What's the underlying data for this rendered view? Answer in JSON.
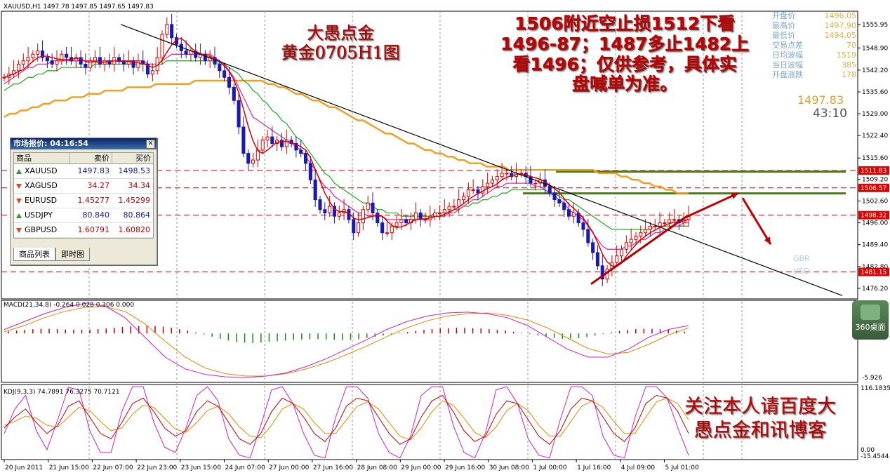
{
  "window": {
    "symbol_header": "XAUUSD,H1  1497.78  1497.85  1497.65  1497.83"
  },
  "annotations": {
    "title_line1": "大愚点金",
    "title_line2": "黄金0705H1图",
    "strategy_line1": "1506附近空止损1512下看",
    "strategy_line2": "1496-87；1487多止1482上",
    "strategy_line3": "看1496；仅供参考，具体实",
    "strategy_line4": "盘喊单为准。",
    "follow_line1": "关注本人请百度大",
    "follow_line2": "愚点金和讯博客"
  },
  "info_panel": [
    {
      "label": "开盘价",
      "value": "1496.05"
    },
    {
      "label": "最高价",
      "value": "1497.90"
    },
    {
      "label": "最低价",
      "value": "1494.05"
    },
    {
      "label": "交易点差",
      "value": "70"
    },
    {
      "label": "日均波幅",
      "value": "1519"
    },
    {
      "label": "当日波幅",
      "value": "385"
    },
    {
      "label": "开盘涨跌",
      "value": "178"
    }
  ],
  "big_price": "1497.83",
  "countdown": "43:10",
  "widget_label": "360桌面",
  "faint_labels": {
    "gbr": "GBR",
    "usd": "USD"
  },
  "market_watch": {
    "title": "市场报价: 04:16:54",
    "col_symbol": "商品",
    "col_bid": "卖价",
    "col_ask": "买价",
    "rows": [
      {
        "symbol": "XAUUSD",
        "bid": "1497.83",
        "ask": "1498.53",
        "dir": "up",
        "color": "#1a1aa0"
      },
      {
        "symbol": "XAGUSD",
        "bid": "34.27",
        "ask": "34.34",
        "dir": "down",
        "color": "#c00000"
      },
      {
        "symbol": "EURUSD",
        "bid": "1.45277",
        "ask": "1.45299",
        "dir": "down",
        "color": "#c00000"
      },
      {
        "symbol": "USDJPY",
        "bid": "80.840",
        "ask": "80.864",
        "dir": "up",
        "color": "#1a1aa0"
      },
      {
        "symbol": "GBPUSD",
        "bid": "1.60791",
        "ask": "1.60820",
        "dir": "down",
        "color": "#c00000"
      }
    ],
    "tab_list": "商品列表",
    "tab_tick": "即时图"
  },
  "chart_data": [
    {
      "type": "line",
      "panel": "price",
      "ylim": [
        1473,
        1560
      ],
      "yticks": [
        "1555.95",
        "1548.90",
        "1542.20",
        "1535.60",
        "1529.00",
        "1522.40",
        "1515.60",
        "1509.20",
        "1502.60",
        "1496.00",
        "1489.40",
        "1482.80",
        "1476.20"
      ],
      "yticks_num": [
        1555.95,
        1548.9,
        1542.2,
        1535.6,
        1529.0,
        1522.4,
        1515.6,
        1509.2,
        1502.6,
        1496.0,
        1489.4,
        1482.8,
        1476.2
      ],
      "price_labels": [
        {
          "text": "1511.83",
          "value": 1511.83
        },
        {
          "text": "1506.57",
          "value": 1506.57
        },
        {
          "text": "1498.32",
          "value": 1498.32
        },
        {
          "text": "1481.15",
          "value": 1481.15
        }
      ],
      "green_levels": [
        1511.5,
        1504.9
      ],
      "close_series": [
        1540,
        1541,
        1542,
        1544,
        1545,
        1546,
        1547,
        1548,
        1546,
        1545,
        1544,
        1545,
        1547,
        1546,
        1545,
        1546,
        1544,
        1543,
        1545,
        1546,
        1544,
        1545,
        1544,
        1546,
        1545,
        1544,
        1545,
        1543,
        1545,
        1544,
        1541,
        1542,
        1546,
        1553,
        1556,
        1552,
        1550,
        1548,
        1547,
        1548,
        1546,
        1547,
        1545,
        1546,
        1544,
        1542,
        1540,
        1537,
        1533,
        1525,
        1517,
        1514,
        1515,
        1518,
        1521,
        1522,
        1520,
        1521,
        1519,
        1521,
        1520,
        1518,
        1517,
        1514,
        1509,
        1503,
        1500,
        1499,
        1501,
        1498,
        1499,
        1500,
        1497,
        1493,
        1496,
        1500,
        1502,
        1499,
        1496,
        1493,
        1493,
        1495,
        1496,
        1497,
        1496,
        1497,
        1499,
        1497,
        1497,
        1498,
        1499,
        1499,
        1500,
        1501,
        1501,
        1503,
        1504,
        1506,
        1506,
        1505,
        1507,
        1508,
        1509,
        1510,
        1511,
        1511,
        1510,
        1511,
        1511,
        1510,
        1508,
        1508,
        1509,
        1507,
        1505,
        1503,
        1502,
        1500,
        1498,
        1499,
        1496,
        1494,
        1490,
        1487,
        1483,
        1479,
        1482,
        1484,
        1486,
        1488,
        1490,
        1491,
        1492,
        1493,
        1494,
        1495,
        1495,
        1496,
        1496,
        1497,
        1497,
        1496,
        1497,
        1498
      ],
      "ma_pink": [
        1538,
        1539,
        1540,
        1541,
        1542,
        1543,
        1543,
        1544,
        1544,
        1544,
        1545,
        1545,
        1545,
        1545,
        1545,
        1545,
        1545,
        1545,
        1545,
        1545,
        1545,
        1545,
        1545,
        1545,
        1545,
        1545,
        1545,
        1545,
        1545,
        1545,
        1544,
        1544,
        1544,
        1545,
        1546,
        1547,
        1547,
        1547,
        1547,
        1547,
        1547,
        1547,
        1547,
        1547,
        1546,
        1545,
        1544,
        1542,
        1540,
        1537,
        1534,
        1531,
        1528,
        1527,
        1526,
        1525,
        1524,
        1523,
        1522,
        1521,
        1520,
        1519,
        1518,
        1516,
        1514,
        1512,
        1509,
        1507,
        1506,
        1504,
        1503,
        1502,
        1501,
        1500,
        1499,
        1499,
        1498,
        1498,
        1498,
        1498,
        1497,
        1497,
        1497,
        1497,
        1497,
        1497,
        1497,
        1497,
        1497,
        1497,
        1498,
        1498,
        1498,
        1499,
        1499,
        1500,
        1501,
        1502,
        1503,
        1503,
        1504,
        1505,
        1506,
        1507,
        1507,
        1508,
        1508,
        1508,
        1508,
        1508,
        1508,
        1507,
        1507,
        1506,
        1505,
        1504,
        1503,
        1502,
        1500,
        1499,
        1498,
        1497,
        1495,
        1493,
        1491,
        1489,
        1488,
        1488,
        1488,
        1488,
        1489,
        1489,
        1490,
        1491,
        1491,
        1492,
        1493,
        1493,
        1494,
        1494,
        1495,
        1495,
        1496,
        1496
      ],
      "ma_green": [
        1536,
        1537,
        1538,
        1538,
        1539,
        1540,
        1540,
        1541,
        1541,
        1542,
        1542,
        1542,
        1543,
        1543,
        1543,
        1543,
        1543,
        1543,
        1543,
        1544,
        1544,
        1544,
        1544,
        1544,
        1544,
        1544,
        1544,
        1544,
        1544,
        1544,
        1544,
        1544,
        1544,
        1544,
        1545,
        1545,
        1545,
        1545,
        1545,
        1545,
        1545,
        1545,
        1545,
        1545,
        1545,
        1544,
        1544,
        1543,
        1542,
        1541,
        1539,
        1538,
        1536,
        1535,
        1533,
        1532,
        1530,
        1529,
        1527,
        1526,
        1524,
        1522,
        1521,
        1519,
        1517,
        1515,
        1513,
        1511,
        1510,
        1508,
        1507,
        1506,
        1505,
        1504,
        1503,
        1502,
        1502,
        1501,
        1500,
        1500,
        1499,
        1499,
        1499,
        1498,
        1498,
        1498,
        1498,
        1498,
        1498,
        1498,
        1499,
        1499,
        1499,
        1499,
        1500,
        1500,
        1501,
        1501,
        1502,
        1502,
        1503,
        1503,
        1504,
        1504,
        1505,
        1505,
        1506,
        1506,
        1506,
        1506,
        1506,
        1506,
        1506,
        1506,
        1505,
        1505,
        1504,
        1503,
        1503,
        1502,
        1501,
        1500,
        1499,
        1498,
        1497,
        1496,
        1495,
        1494,
        1494,
        1494,
        1494,
        1494,
        1494,
        1494,
        1494,
        1494,
        1495,
        1495,
        1495,
        1495,
        1495,
        1495,
        1495,
        1495
      ],
      "ma_orange": [
        1528,
        1529,
        1529,
        1530,
        1530,
        1531,
        1531,
        1532,
        1532,
        1533,
        1533,
        1533,
        1534,
        1534,
        1534,
        1535,
        1535,
        1535,
        1536,
        1536,
        1536,
        1536,
        1537,
        1537,
        1537,
        1537,
        1537,
        1538,
        1538,
        1538,
        1538,
        1538,
        1538,
        1538,
        1539,
        1539,
        1539,
        1539,
        1539,
        1539,
        1539,
        1539,
        1539,
        1539,
        1539,
        1539,
        1539,
        1538,
        1538,
        1537,
        1537,
        1536,
        1535,
        1535,
        1534,
        1533,
        1533,
        1532,
        1531,
        1531,
        1530,
        1529,
        1528,
        1527,
        1527,
        1526,
        1525,
        1524,
        1523,
        1523,
        1522,
        1521,
        1520,
        1520,
        1519,
        1518,
        1518,
        1517,
        1517,
        1516,
        1516,
        1515,
        1515,
        1514,
        1514,
        1514,
        1513,
        1513,
        1513,
        1513,
        1512,
        1512,
        1512,
        1512,
        1512,
        1512,
        1512,
        1512,
        1512,
        1512,
        1512,
        1512,
        1512,
        1512,
        1512,
        1512,
        1511,
        1511,
        1511,
        1511,
        1510,
        1510,
        1509,
        1509,
        1508,
        1508,
        1507,
        1507,
        1506,
        1506,
        1505,
        1505,
        1505
      ],
      "trendline_black": [
        [
          1556,
          1474
        ]
      ],
      "trendline_red": [
        1477,
        1498
      ]
    },
    {
      "type": "bar",
      "panel": "macd",
      "legend": "MACD(21,34,8) -0.264 0.028 0.306 0.000",
      "yticks": [
        "-5.926"
      ],
      "hist": [
        0.6,
        0.8,
        1.0,
        1.2,
        1.3,
        1.3,
        1.2,
        1.1,
        1.0,
        1.0,
        1.1,
        1.2,
        1.4,
        1.6,
        1.8,
        2.0,
        2.1,
        2.2,
        2.1,
        1.9,
        1.6,
        1.2,
        0.8,
        0.3,
        -0.3,
        -0.9,
        -1.5,
        -2.0,
        -2.4,
        -2.6,
        -2.7,
        -2.6,
        -2.4,
        -2.2,
        -2.0,
        -1.8,
        -1.7,
        -1.6,
        -1.6,
        -1.7,
        -1.8,
        -1.9,
        -1.8,
        -1.6,
        -1.3,
        -1.0,
        -0.6,
        -0.3,
        0.1,
        0.4,
        0.7,
        1.0,
        1.2,
        1.4,
        1.5,
        1.6,
        1.6,
        1.5,
        1.4,
        1.2,
        1.0,
        0.8,
        0.5,
        0.2,
        -0.2,
        -0.6,
        -1.0,
        -1.3,
        -1.5,
        -1.5,
        -1.3,
        -1.0,
        -0.6,
        -0.2,
        0.3,
        0.7,
        1.0,
        1.2,
        1.3,
        1.3,
        1.2,
        1.0,
        0.8,
        0.5
      ],
      "macd_line": [
        0.5,
        1.5,
        2.5,
        3.3,
        3.8,
        3.5,
        2.0,
        -0.5,
        -3.0,
        -4.5,
        -5.2,
        -5.5,
        -5.6,
        -5.4,
        -5.0,
        -4.2,
        -3.2,
        -2.0,
        -0.8,
        0.5,
        1.5,
        2.2,
        2.6,
        2.7,
        2.5,
        2.0,
        1.0,
        -0.5,
        -2.0,
        -3.0,
        -3.0,
        -2.0,
        -0.5,
        0.5,
        1.0
      ],
      "signal_line": [
        0.2,
        1.0,
        2.0,
        2.8,
        3.3,
        3.4,
        2.8,
        1.2,
        -1.0,
        -3.0,
        -4.4,
        -5.1,
        -5.4,
        -5.4,
        -5.1,
        -4.5,
        -3.7,
        -2.7,
        -1.6,
        -0.4,
        0.7,
        1.6,
        2.2,
        2.5,
        2.6,
        2.3,
        1.7,
        0.7,
        -0.6,
        -1.9,
        -2.6,
        -2.4,
        -1.4,
        -0.2,
        0.7
      ]
    },
    {
      "type": "line",
      "panel": "kdj",
      "legend": "KDJ(9,3,3) 74.7891 76.3275 70.7121",
      "yticks": [
        "116.18353",
        "0.00",
        "-15.4544"
      ],
      "k_line": [
        40,
        60,
        75,
        50,
        30,
        45,
        80,
        90,
        60,
        30,
        20,
        50,
        85,
        95,
        70,
        40,
        25,
        35,
        70,
        90,
        80,
        50,
        20,
        10,
        30,
        70,
        95,
        85,
        60,
        30,
        15,
        40,
        80,
        95,
        90,
        60,
        30,
        10,
        20,
        60,
        90,
        100,
        70,
        35,
        15,
        25,
        65,
        90,
        85,
        55,
        25,
        10,
        35,
        75,
        95,
        90,
        60,
        30,
        15,
        40,
        85,
        100,
        95,
        70,
        30
      ],
      "d_line": [
        45,
        52,
        62,
        58,
        45,
        42,
        60,
        78,
        72,
        52,
        35,
        40,
        65,
        82,
        78,
        58,
        38,
        32,
        50,
        72,
        80,
        66,
        42,
        25,
        22,
        45,
        75,
        85,
        75,
        50,
        30,
        30,
        55,
        80,
        88,
        75,
        50,
        25,
        18,
        40,
        70,
        90,
        82,
        58,
        32,
        22,
        42,
        72,
        85,
        72,
        45,
        25,
        25,
        52,
        80,
        90,
        78,
        52,
        30,
        30,
        60,
        88,
        95,
        85,
        55
      ],
      "j_line": [
        30,
        75,
        100,
        35,
        0,
        55,
        115,
        110,
        35,
        -5,
        -5,
        70,
        116,
        116,
        50,
        5,
        -5,
        40,
        100,
        116,
        90,
        20,
        -10,
        -15,
        45,
        110,
        116,
        85,
        30,
        -10,
        -15,
        60,
        116,
        116,
        95,
        30,
        -5,
        -15,
        25,
        100,
        116,
        116,
        45,
        -5,
        -15,
        30,
        110,
        116,
        85,
        20,
        -10,
        -15,
        55,
        116,
        116,
        100,
        25,
        -10,
        -15,
        60,
        116,
        116,
        95,
        40,
        -10
      ]
    }
  ],
  "x_axis_labels": [
    "20 Jun 2011",
    "21 Jun 15:00",
    "22 Jun 07:00",
    "22 Jun 23:00",
    "23 Jun 15:00",
    "24 Jun 07:00",
    "27 Jun 00:00",
    "27 Jun 16:00",
    "28 Jun 08:00",
    "29 Jun 00:00",
    "29 Jun 16:00",
    "30 Jun 08:00",
    "1 Jul 00:00",
    "1 Jul 16:00",
    "4 Jul 09:00",
    "5 Jul 01:00"
  ]
}
